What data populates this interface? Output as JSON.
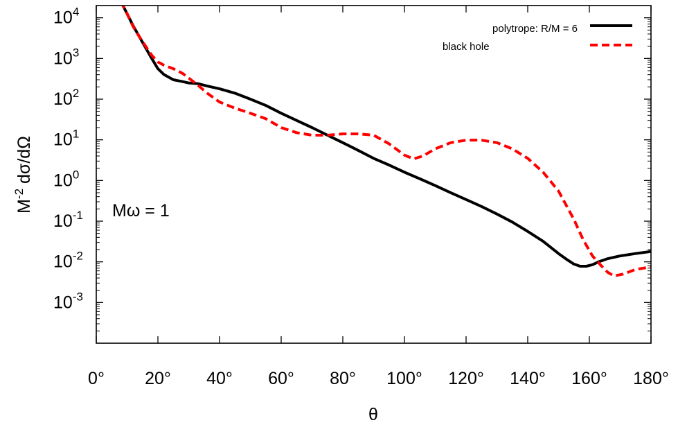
{
  "chart_data": {
    "type": "line",
    "title": "",
    "xlabel": "θ",
    "ylabel": "M",
    "ylabel_sup": "-2",
    "ylabel_rest": " dσ/dΩ",
    "xlim": [
      0,
      180
    ],
    "ylim": [
      0.0001,
      20000
    ],
    "yscale": "log",
    "grid": false,
    "legend_position": "top-right",
    "x_ticks": [
      0,
      20,
      40,
      60,
      80,
      100,
      120,
      140,
      160,
      180
    ],
    "x_tick_labels": [
      "0°",
      "20°",
      "40°",
      "60°",
      "80°",
      "100°",
      "120°",
      "140°",
      "160°",
      "180°"
    ],
    "y_ticks": [
      {
        "value": 0.001,
        "base": "10",
        "exp": "-3"
      },
      {
        "value": 0.01,
        "base": "10",
        "exp": "-2"
      },
      {
        "value": 0.1,
        "base": "10",
        "exp": "-1"
      },
      {
        "value": 1,
        "base": "10",
        "exp": "0"
      },
      {
        "value": 10,
        "base": "10",
        "exp": "1"
      },
      {
        "value": 100,
        "base": "10",
        "exp": "2"
      },
      {
        "value": 1000,
        "base": "10",
        "exp": "3"
      },
      {
        "value": 10000,
        "base": "10",
        "exp": "4"
      }
    ],
    "annotation": "Mω = 1",
    "series": [
      {
        "name": "polytrope: R/M = 6",
        "color": "#000000",
        "dash": "solid",
        "x": [
          8,
          10,
          12,
          15,
          18,
          20,
          22,
          25,
          28,
          30,
          33,
          36,
          40,
          45,
          50,
          55,
          60,
          65,
          70,
          75,
          80,
          85,
          90,
          95,
          100,
          105,
          110,
          115,
          120,
          125,
          130,
          135,
          140,
          145,
          150,
          153,
          155,
          157,
          159,
          161,
          163,
          166,
          170,
          175,
          180
        ],
        "y": [
          25000,
          12600,
          6300,
          2500,
          1000,
          560,
          400,
          300,
          270,
          250,
          240,
          210,
          180,
          140,
          100,
          70,
          45,
          30,
          20,
          13,
          8.5,
          5.5,
          3.5,
          2.4,
          1.6,
          1.1,
          0.75,
          0.5,
          0.34,
          0.23,
          0.15,
          0.095,
          0.056,
          0.032,
          0.016,
          0.011,
          0.0088,
          0.0078,
          0.0078,
          0.0085,
          0.01,
          0.012,
          0.014,
          0.016,
          0.018
        ]
      },
      {
        "name": "black hole",
        "color": "#ff0000",
        "dash": "dashed",
        "x": [
          8,
          10,
          12,
          15,
          18,
          20,
          22,
          25,
          28,
          30,
          33,
          36,
          40,
          45,
          50,
          55,
          60,
          65,
          70,
          75,
          80,
          85,
          90,
          95,
          100,
          103,
          106,
          110,
          115,
          120,
          125,
          130,
          135,
          140,
          145,
          150,
          155,
          158,
          161,
          164,
          166,
          168,
          171,
          175,
          180
        ],
        "y": [
          25000,
          12600,
          6000,
          2600,
          1200,
          820,
          680,
          560,
          430,
          330,
          220,
          140,
          85,
          60,
          45,
          33,
          20,
          15,
          13,
          13,
          14,
          14,
          13,
          8,
          4.2,
          3.4,
          4,
          6,
          8.5,
          9.8,
          9.8,
          8.5,
          6,
          3.5,
          1.6,
          0.55,
          0.11,
          0.035,
          0.014,
          0.0078,
          0.0055,
          0.0045,
          0.005,
          0.0065,
          0.0075
        ]
      }
    ]
  }
}
